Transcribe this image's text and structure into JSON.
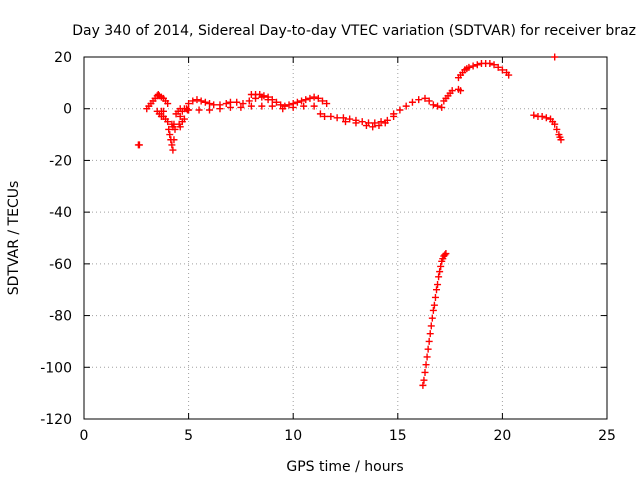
{
  "chart_data": {
    "type": "scatter",
    "title": "Day 340 of 2014, Sidereal Day-to-day VTEC variation (SDTVAR) for receiver braz",
    "xlabel": "GPS time / hours",
    "ylabel": "SDTVAR / TECUs",
    "xlim": [
      0,
      25
    ],
    "ylim": [
      -120,
      20
    ],
    "grid": true,
    "legend": "none",
    "x_ticks": [
      0,
      5,
      10,
      15,
      20,
      25
    ],
    "y_ticks": [
      -120,
      -100,
      -80,
      -60,
      -40,
      -20,
      0,
      20
    ],
    "x_tick_labels": [
      "0",
      "5",
      "10",
      "15",
      "20",
      "25"
    ],
    "y_tick_labels": [
      "-120",
      "-100",
      "-80",
      "-60",
      "-40",
      "-20",
      "0",
      "20"
    ],
    "marker": "+",
    "marker_color": "#ff0000",
    "series": [
      {
        "name": "SDTVAR",
        "points": [
          [
            2.6,
            -14
          ],
          [
            2.65,
            -14
          ],
          [
            3.0,
            0
          ],
          [
            3.1,
            1
          ],
          [
            3.2,
            2
          ],
          [
            3.3,
            3
          ],
          [
            3.4,
            4
          ],
          [
            3.5,
            5
          ],
          [
            3.55,
            5.5
          ],
          [
            3.6,
            5
          ],
          [
            3.7,
            4.5
          ],
          [
            3.8,
            4
          ],
          [
            3.9,
            3
          ],
          [
            4.0,
            2
          ],
          [
            3.5,
            -1
          ],
          [
            3.6,
            -2
          ],
          [
            3.7,
            -3
          ],
          [
            3.8,
            -3
          ],
          [
            3.9,
            -4
          ],
          [
            3.7,
            -1
          ],
          [
            3.8,
            -1
          ],
          [
            4.0,
            -5
          ],
          [
            4.05,
            -8
          ],
          [
            4.1,
            -10
          ],
          [
            4.15,
            -12
          ],
          [
            4.2,
            -14
          ],
          [
            4.25,
            -16
          ],
          [
            4.3,
            -12
          ],
          [
            4.35,
            -8
          ],
          [
            4.3,
            -6
          ],
          [
            4.2,
            -6
          ],
          [
            4.25,
            -7
          ],
          [
            4.4,
            -2
          ],
          [
            4.5,
            -1
          ],
          [
            4.6,
            0
          ],
          [
            4.7,
            -1
          ],
          [
            4.8,
            0
          ],
          [
            4.9,
            0
          ],
          [
            4.95,
            -0.5
          ],
          [
            4.6,
            -3
          ],
          [
            4.7,
            -5
          ],
          [
            4.8,
            -4
          ],
          [
            4.55,
            -6
          ],
          [
            4.6,
            -7
          ],
          [
            5.0,
            2
          ],
          [
            5.2,
            3
          ],
          [
            5.4,
            3.5
          ],
          [
            5.6,
            3
          ],
          [
            5.8,
            2.5
          ],
          [
            6.0,
            2
          ],
          [
            6.2,
            1.5
          ],
          [
            6.5,
            1.5
          ],
          [
            6.8,
            2
          ],
          [
            7.0,
            2.5
          ],
          [
            7.3,
            2.5
          ],
          [
            7.6,
            2
          ],
          [
            7.9,
            3
          ],
          [
            8.2,
            4
          ],
          [
            8.5,
            4.5
          ],
          [
            8.8,
            3.5
          ],
          [
            5.0,
            -0.5
          ],
          [
            5.5,
            -0.5
          ],
          [
            6.0,
            -0.5
          ],
          [
            6.5,
            0
          ],
          [
            7.0,
            0.5
          ],
          [
            7.5,
            0.5
          ],
          [
            8.0,
            1
          ],
          [
            8.5,
            1
          ],
          [
            9.0,
            1
          ],
          [
            8.0,
            5.5
          ],
          [
            8.2,
            5.5
          ],
          [
            8.4,
            5.5
          ],
          [
            8.6,
            5
          ],
          [
            8.8,
            4.5
          ],
          [
            9.0,
            3.5
          ],
          [
            9.2,
            2.5
          ],
          [
            9.4,
            1.5
          ],
          [
            9.6,
            1
          ],
          [
            9.8,
            1.5
          ],
          [
            10.0,
            2
          ],
          [
            10.2,
            2.5
          ],
          [
            10.4,
            3
          ],
          [
            10.6,
            3.5
          ],
          [
            10.8,
            4
          ],
          [
            11.0,
            4.5
          ],
          [
            11.2,
            4
          ],
          [
            11.4,
            3
          ],
          [
            11.6,
            2
          ],
          [
            9.5,
            0
          ],
          [
            10.0,
            0.5
          ],
          [
            10.5,
            1
          ],
          [
            11.0,
            1
          ],
          [
            11.3,
            -2
          ],
          [
            11.5,
            -3
          ],
          [
            11.8,
            -3
          ],
          [
            12.1,
            -3.5
          ],
          [
            12.4,
            -3.5
          ],
          [
            12.7,
            -4
          ],
          [
            13.0,
            -4.5
          ],
          [
            13.3,
            -5
          ],
          [
            13.6,
            -5.5
          ],
          [
            13.9,
            -5.5
          ],
          [
            14.2,
            -5
          ],
          [
            14.5,
            -4.5
          ],
          [
            14.8,
            -3
          ],
          [
            12.5,
            -5
          ],
          [
            13.0,
            -5.5
          ],
          [
            13.5,
            -6.5
          ],
          [
            13.8,
            -7
          ],
          [
            14.1,
            -6.5
          ],
          [
            14.4,
            -5.5
          ],
          [
            14.8,
            -2
          ],
          [
            15.1,
            -0.5
          ],
          [
            15.4,
            1
          ],
          [
            15.7,
            2.5
          ],
          [
            16.0,
            3.5
          ],
          [
            16.3,
            4
          ],
          [
            16.5,
            3
          ],
          [
            16.7,
            1.5
          ],
          [
            16.9,
            1
          ],
          [
            17.1,
            0.5
          ],
          [
            17.2,
            3
          ],
          [
            17.3,
            4
          ],
          [
            17.4,
            5
          ],
          [
            17.5,
            6
          ],
          [
            17.6,
            7
          ],
          [
            17.9,
            7.5
          ],
          [
            18.0,
            7
          ],
          [
            17.9,
            12
          ],
          [
            18.0,
            13
          ],
          [
            18.1,
            14
          ],
          [
            18.2,
            15
          ],
          [
            18.3,
            15.5
          ],
          [
            18.4,
            16
          ],
          [
            18.6,
            16.5
          ],
          [
            18.8,
            17
          ],
          [
            19.0,
            17.5
          ],
          [
            19.2,
            17.5
          ],
          [
            19.4,
            17.5
          ],
          [
            19.6,
            17
          ],
          [
            19.8,
            16
          ],
          [
            20.0,
            15
          ],
          [
            20.2,
            14
          ],
          [
            20.3,
            13
          ],
          [
            22.5,
            20
          ],
          [
            21.5,
            -2.5
          ],
          [
            21.7,
            -3
          ],
          [
            21.9,
            -3
          ],
          [
            22.1,
            -3.5
          ],
          [
            22.3,
            -4
          ],
          [
            22.4,
            -5
          ],
          [
            22.5,
            -6
          ],
          [
            22.6,
            -8
          ],
          [
            22.7,
            -10
          ],
          [
            22.75,
            -11
          ],
          [
            22.8,
            -12
          ],
          [
            16.2,
            -107
          ],
          [
            16.25,
            -105
          ],
          [
            16.3,
            -102
          ],
          [
            16.35,
            -99
          ],
          [
            16.4,
            -96
          ],
          [
            16.45,
            -93
          ],
          [
            16.5,
            -90
          ],
          [
            16.55,
            -87
          ],
          [
            16.6,
            -84
          ],
          [
            16.65,
            -81
          ],
          [
            16.7,
            -78
          ],
          [
            16.75,
            -76
          ],
          [
            16.8,
            -73
          ],
          [
            16.85,
            -70
          ],
          [
            16.9,
            -68
          ],
          [
            16.95,
            -65
          ],
          [
            17.0,
            -63
          ],
          [
            17.05,
            -61
          ],
          [
            17.1,
            -59
          ],
          [
            17.15,
            -58
          ],
          [
            17.2,
            -57
          ],
          [
            17.25,
            -56.5
          ],
          [
            17.3,
            -56
          ]
        ]
      }
    ]
  }
}
